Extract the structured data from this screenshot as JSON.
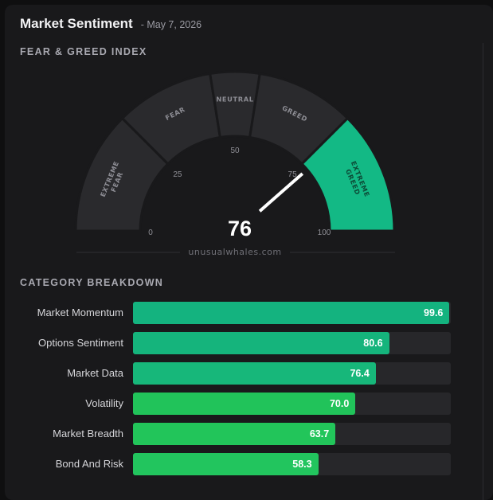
{
  "header": {
    "title": "Market Sentiment",
    "date": "- May 7, 2026"
  },
  "gauge": {
    "section_label": "FEAR & GREED INDEX",
    "value": 76,
    "value_label": "76",
    "min": 0,
    "max": 100,
    "ticks": [
      "0",
      "25",
      "50",
      "75",
      "100"
    ],
    "zones": [
      {
        "lines": [
          "EXTREME",
          "FEAR"
        ],
        "from": 0,
        "to": 25
      },
      {
        "lines": [
          "FEAR"
        ],
        "from": 25,
        "to": 45
      },
      {
        "lines": [
          "NEUTRAL"
        ],
        "from": 45,
        "to": 55
      },
      {
        "lines": [
          "GREED"
        ],
        "from": 55,
        "to": 75
      },
      {
        "lines": [
          "EXTREME",
          "GREED"
        ],
        "from": 75,
        "to": 100
      }
    ],
    "active_zone_color": "#13b985",
    "inactive_zone_color": "#2a2a2d",
    "watermark": "unusualwhales.com"
  },
  "breakdown": {
    "section_label": "CATEGORY BREAKDOWN",
    "max": 100,
    "items": [
      {
        "label": "Market Momentum",
        "value": 99.6,
        "value_label": "99.6",
        "color": "#14b37f"
      },
      {
        "label": "Options Sentiment",
        "value": 80.6,
        "value_label": "80.6",
        "color": "#15b47c"
      },
      {
        "label": "Market Data",
        "value": 76.4,
        "value_label": "76.4",
        "color": "#17b77a"
      },
      {
        "label": "Volatility",
        "value": 70.0,
        "value_label": "70.0",
        "color": "#21c35a"
      },
      {
        "label": "Market Breadth",
        "value": 63.7,
        "value_label": "63.7",
        "color": "#22c55a"
      },
      {
        "label": "Bond And Risk",
        "value": 58.3,
        "value_label": "58.3",
        "color": "#22c55e"
      }
    ]
  }
}
